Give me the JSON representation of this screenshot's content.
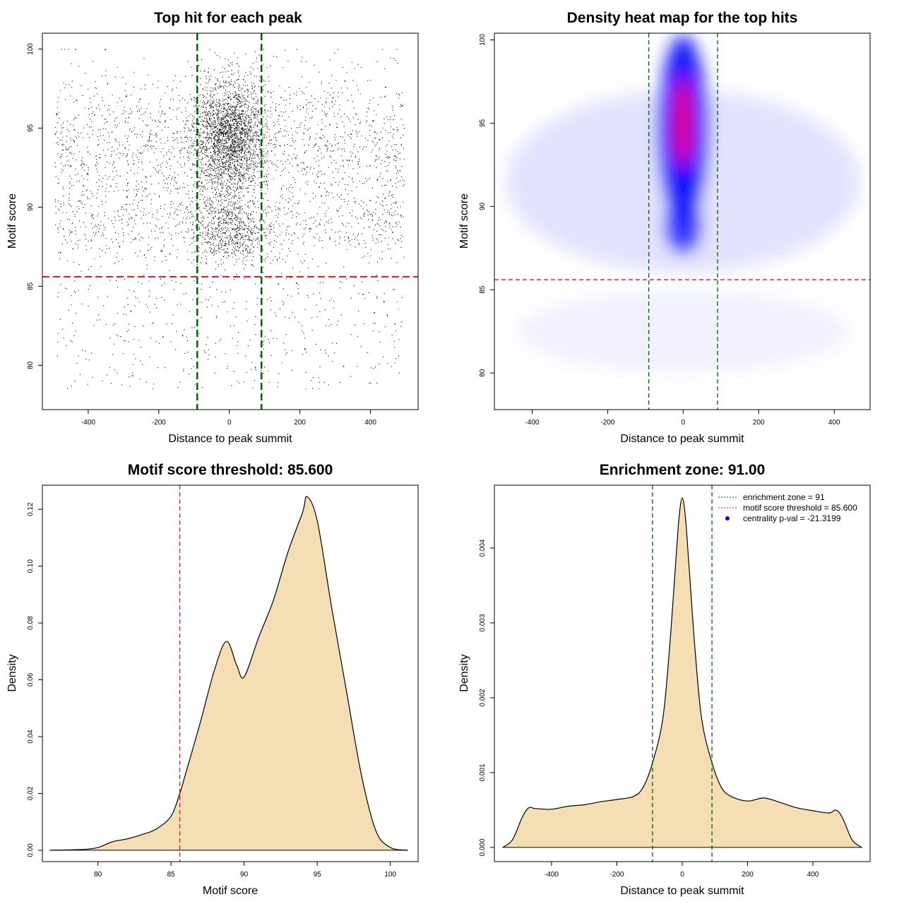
{
  "chart_data": [
    {
      "type": "scatter",
      "title": "Top hit for each peak",
      "xlabel": "Distance to peak summit",
      "ylabel": "Motif score",
      "xlim": [
        -530,
        535
      ],
      "ylim": [
        77.2,
        101.0
      ],
      "xticks": [
        -400,
        -200,
        0,
        200,
        400
      ],
      "yticks": [
        80,
        85,
        90,
        95,
        100
      ],
      "xtick_labels": [
        "-400",
        "-200",
        "0",
        "200",
        "400"
      ],
      "ytick_labels": [
        "80",
        "85",
        "90",
        "95",
        "100"
      ],
      "threshold_y": 85.6,
      "enrichment_zone": [
        -91,
        91
      ],
      "colors": {
        "points": "#000000",
        "threshold": "#d7191c",
        "zone": "#006400"
      }
    },
    {
      "type": "heatmap",
      "title": "Density heat map for the top hits",
      "xlabel": "Distance to peak summit",
      "ylabel": "Motif score",
      "xlim": [
        -500,
        495
      ],
      "ylim": [
        77.8,
        100.4
      ],
      "xticks": [
        -400,
        -200,
        0,
        200,
        400
      ],
      "yticks": [
        80,
        85,
        90,
        95,
        100
      ],
      "xtick_labels": [
        "-400",
        "-200",
        "0",
        "200",
        "400"
      ],
      "ytick_labels": [
        "80",
        "85",
        "90",
        "95",
        "100"
      ],
      "threshold_y": 85.6,
      "enrichment_zone": [
        -91,
        91
      ],
      "density_peaks": [
        {
          "x": 0,
          "y": 95,
          "level": "high"
        },
        {
          "x": 0,
          "y": 88.8,
          "level": "medium"
        }
      ],
      "colors": {
        "low": "#ffffff",
        "mid": "#0000ff",
        "high": "#ff0000",
        "threshold": "#d7191c",
        "zone": "#006400"
      }
    },
    {
      "type": "area",
      "title": "Motif score threshold: 85.600",
      "xlabel": "Motif score",
      "ylabel": "Density",
      "xlim": [
        76.2,
        101.9
      ],
      "ylim": [
        -0.004,
        0.1285
      ],
      "xticks": [
        80,
        85,
        90,
        95,
        100
      ],
      "yticks": [
        0.0,
        0.02,
        0.04,
        0.06,
        0.08,
        0.1,
        0.12
      ],
      "xtick_labels": [
        "80",
        "85",
        "90",
        "95",
        "100"
      ],
      "ytick_labels": [
        "0.00",
        "0.02",
        "0.04",
        "0.06",
        "0.08",
        "0.10",
        "0.12"
      ],
      "x": [
        76.7,
        79,
        80,
        81,
        82,
        83,
        84,
        85,
        85.6,
        86,
        87,
        88,
        88.8,
        89.5,
        90,
        91,
        92,
        93,
        94,
        94.3,
        95,
        96,
        97,
        98,
        99,
        100,
        101.2
      ],
      "y": [
        0.0,
        0.0003,
        0.001,
        0.003,
        0.004,
        0.0055,
        0.0075,
        0.012,
        0.02,
        0.027,
        0.045,
        0.064,
        0.0735,
        0.065,
        0.061,
        0.075,
        0.088,
        0.105,
        0.119,
        0.1245,
        0.116,
        0.085,
        0.056,
        0.027,
        0.007,
        0.001,
        0.0
      ],
      "threshold_x": 85.6,
      "colors": {
        "fill": "#f5deb3",
        "line": "#000000",
        "threshold": "#d7191c"
      }
    },
    {
      "type": "area",
      "title": "Enrichment zone: 91.00",
      "xlabel": "Distance to peak summit",
      "ylabel": "Density",
      "xlim": [
        -575,
        575
      ],
      "ylim": [
        -0.00019,
        0.00484
      ],
      "xticks": [
        -400,
        -200,
        0,
        200,
        400
      ],
      "yticks": [
        0.0,
        0.001,
        0.002,
        0.003,
        0.004
      ],
      "xtick_labels": [
        "-400",
        "-200",
        "0",
        "200",
        "400"
      ],
      "ytick_labels": [
        "0.000",
        "0.001",
        "0.002",
        "0.003",
        "0.004"
      ],
      "x": [
        -550,
        -520,
        -490,
        -470,
        -450,
        -400,
        -350,
        -300,
        -250,
        -200,
        -150,
        -120,
        -91,
        -60,
        -40,
        -20,
        -10,
        0,
        10,
        20,
        40,
        60,
        91,
        120,
        150,
        200,
        250,
        300,
        350,
        400,
        450,
        470,
        490,
        520,
        550
      ],
      "y": [
        0.0,
        0.0001,
        0.0004,
        0.00053,
        0.00052,
        0.00051,
        0.00055,
        0.00057,
        0.00061,
        0.00064,
        0.00068,
        0.0008,
        0.00113,
        0.0017,
        0.0026,
        0.0038,
        0.0044,
        0.00467,
        0.0044,
        0.0038,
        0.0026,
        0.0017,
        0.00113,
        0.0008,
        0.00068,
        0.00062,
        0.00066,
        0.0006,
        0.00053,
        0.00049,
        0.00046,
        0.0005,
        0.0004,
        0.0001,
        0.0
      ],
      "enrichment_zone": [
        -91,
        91
      ],
      "legend_position": "top-right",
      "legend": [
        {
          "label": "enrichment zone = 91",
          "symbol": "dotted-line",
          "color": "#006400"
        },
        {
          "label": "motif score threshold = 85.600",
          "symbol": "dotted-line",
          "color": "#d7191c"
        },
        {
          "label": "centrality p-val = -21.3199",
          "symbol": "dot",
          "color": "#0000ff"
        }
      ],
      "colors": {
        "fill": "#f5deb3",
        "line": "#000000",
        "zone": "#006400"
      }
    }
  ]
}
